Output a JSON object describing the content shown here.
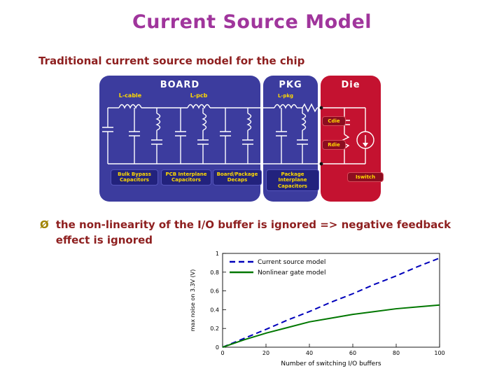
{
  "slide": {
    "title": "Current Source Model",
    "subtitle": "Traditional current source model for the chip",
    "bullet": {
      "marker": "Ø",
      "text": "the non-linearity of the I/O buffer is ignored => negative feedback effect is ignored"
    }
  },
  "colors": {
    "title": "#a0359c",
    "body_text": "#8e1f1f",
    "bullet_marker": "#a08400",
    "board_region": "#3c3c9e",
    "die_region": "#c41230",
    "diagram_label_text": "#ffd900"
  },
  "diagram": {
    "sections": [
      {
        "label": "BOARD"
      },
      {
        "label": "PKG"
      },
      {
        "label": "Die"
      }
    ],
    "inductors": [
      "L-cable",
      "L-pcb",
      "L-pkg"
    ],
    "component_labels": [
      "Bulk Bypass Capacitors",
      "PCB Interplane Capacitors",
      "Board/Package Decaps",
      "Package Interplane Capacitors"
    ],
    "die_labels": [
      "Cdie",
      "Rdie",
      "Iswitch"
    ]
  },
  "chart_data": {
    "type": "line",
    "title": "",
    "xlabel": "Number of switching I/O buffers",
    "ylabel": "max noise on 3.3V (V)",
    "xlim": [
      0,
      100
    ],
    "ylim": [
      0,
      1
    ],
    "xticks": [
      "0",
      "20",
      "40",
      "60",
      "80",
      "100"
    ],
    "yticks": [
      "0",
      "0.2",
      "0.4",
      "0.6",
      "0.8",
      "1"
    ],
    "grid": false,
    "legend_position": "top-left",
    "x": [
      0,
      10,
      20,
      30,
      40,
      50,
      60,
      70,
      80,
      90,
      100
    ],
    "series": [
      {
        "name": "Current source model",
        "style": "dashed",
        "color": "#0000bb",
        "values": [
          0,
          0.095,
          0.19,
          0.29,
          0.38,
          0.48,
          0.57,
          0.67,
          0.76,
          0.86,
          0.95
        ]
      },
      {
        "name": "Nonlinear gate model",
        "style": "solid",
        "color": "#007700",
        "values": [
          0,
          0.08,
          0.15,
          0.21,
          0.27,
          0.31,
          0.35,
          0.38,
          0.41,
          0.43,
          0.45
        ]
      }
    ]
  }
}
